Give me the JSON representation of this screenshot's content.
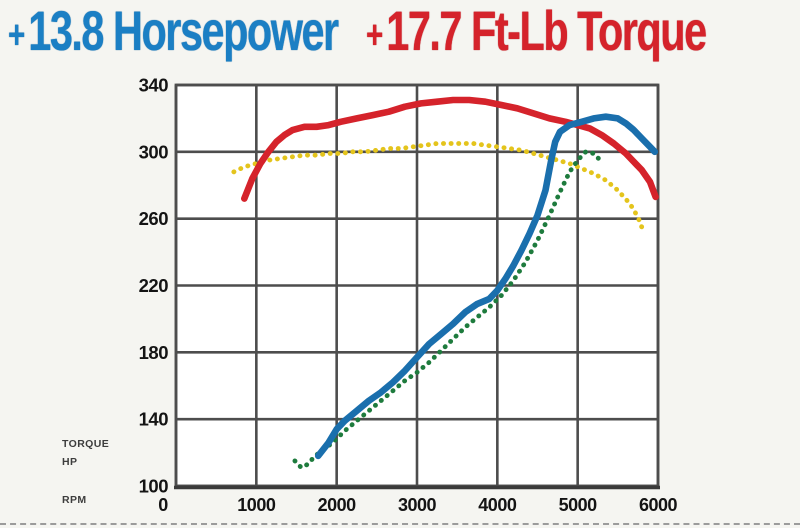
{
  "title": {
    "horsepower": {
      "plus": "+",
      "text": "13.8 Horsepower",
      "color": "#1b7fc4"
    },
    "torque": {
      "plus": "+",
      "text": "17.7 Ft-Lb Torque",
      "color": "#d5232b"
    }
  },
  "axis_side_labels": {
    "torque": "TORQUE",
    "hp": "HP",
    "rpm": "RPM"
  },
  "colors": {
    "page_bg": "#f5f5f1",
    "plot_bg": "#ffffff",
    "grid": "#4d4d4d",
    "axis_bottom": "#3a3a3a",
    "tick_text": "#141414"
  },
  "chart_data": {
    "type": "line",
    "title": "+ 13.8 Horsepower + 17.7 Ft-Lb Torque",
    "xlabel": "RPM",
    "ylabel": "TORQUE / HP",
    "x_ticks": [
      0,
      1000,
      2000,
      3000,
      4000,
      5000,
      6000
    ],
    "y_ticks": [
      100,
      140,
      180,
      220,
      260,
      300,
      340
    ],
    "xlim": [
      0,
      6000
    ],
    "ylim": [
      100,
      340
    ],
    "grid": true,
    "legend_position": "none",
    "series": [
      {
        "name": "torque-before",
        "label": "Torque before (dotted yellow)",
        "style": "dotted",
        "color": "#e4c41c",
        "points": [
          [
            720,
            288
          ],
          [
            850,
            291
          ],
          [
            1000,
            293
          ],
          [
            1150,
            295
          ],
          [
            1300,
            296
          ],
          [
            1450,
            297
          ],
          [
            1600,
            298
          ],
          [
            1750,
            298
          ],
          [
            1900,
            299
          ],
          [
            2050,
            299
          ],
          [
            2200,
            300
          ],
          [
            2350,
            300
          ],
          [
            2500,
            301
          ],
          [
            2650,
            302
          ],
          [
            2800,
            302
          ],
          [
            2950,
            303
          ],
          [
            3100,
            304
          ],
          [
            3250,
            305
          ],
          [
            3400,
            305
          ],
          [
            3550,
            305
          ],
          [
            3700,
            305
          ],
          [
            3850,
            304
          ],
          [
            4000,
            303
          ],
          [
            4150,
            302
          ],
          [
            4300,
            301
          ],
          [
            4450,
            299
          ],
          [
            4600,
            297
          ],
          [
            4750,
            295
          ],
          [
            4900,
            293
          ],
          [
            5050,
            290
          ],
          [
            5200,
            287
          ],
          [
            5350,
            283
          ],
          [
            5500,
            277
          ],
          [
            5650,
            269
          ],
          [
            5750,
            261
          ],
          [
            5830,
            251
          ]
        ]
      },
      {
        "name": "hp-before",
        "label": "Horsepower before (dotted green)",
        "style": "dotted",
        "color": "#1e7b3d",
        "points": [
          [
            1480,
            115
          ],
          [
            1560,
            111
          ],
          [
            1640,
            113
          ],
          [
            1730,
            118
          ],
          [
            1820,
            121
          ],
          [
            1950,
            126
          ],
          [
            2100,
            133
          ],
          [
            2250,
            139
          ],
          [
            2400,
            145
          ],
          [
            2550,
            151
          ],
          [
            2700,
            157
          ],
          [
            2850,
            163
          ],
          [
            3000,
            168
          ],
          [
            3150,
            174
          ],
          [
            3300,
            181
          ],
          [
            3450,
            188
          ],
          [
            3600,
            195
          ],
          [
            3750,
            201
          ],
          [
            3900,
            207
          ],
          [
            4050,
            214
          ],
          [
            4200,
            223
          ],
          [
            4350,
            234
          ],
          [
            4500,
            247
          ],
          [
            4650,
            262
          ],
          [
            4780,
            276
          ],
          [
            4900,
            288
          ],
          [
            5000,
            295
          ],
          [
            5100,
            300
          ],
          [
            5200,
            299
          ],
          [
            5300,
            294
          ]
        ]
      },
      {
        "name": "torque-after",
        "label": "Torque after (solid red)",
        "style": "solid",
        "color": "#d5232b",
        "points": [
          [
            850,
            272
          ],
          [
            950,
            284
          ],
          [
            1050,
            293
          ],
          [
            1150,
            300
          ],
          [
            1250,
            306
          ],
          [
            1350,
            310
          ],
          [
            1450,
            313
          ],
          [
            1600,
            315
          ],
          [
            1750,
            315
          ],
          [
            1900,
            316
          ],
          [
            2050,
            318
          ],
          [
            2250,
            320
          ],
          [
            2450,
            322
          ],
          [
            2650,
            324
          ],
          [
            2850,
            327
          ],
          [
            3050,
            329
          ],
          [
            3250,
            330
          ],
          [
            3450,
            331
          ],
          [
            3650,
            331
          ],
          [
            3850,
            330
          ],
          [
            4050,
            328
          ],
          [
            4250,
            326
          ],
          [
            4450,
            323
          ],
          [
            4650,
            320
          ],
          [
            4850,
            318
          ],
          [
            5000,
            316
          ],
          [
            5150,
            314
          ],
          [
            5300,
            310
          ],
          [
            5450,
            305
          ],
          [
            5600,
            299
          ],
          [
            5700,
            294
          ],
          [
            5800,
            289
          ],
          [
            5900,
            282
          ],
          [
            5970,
            273
          ]
        ]
      },
      {
        "name": "hp-after",
        "label": "Horsepower after (solid blue)",
        "style": "solid",
        "color": "#1a6fad",
        "points": [
          [
            1770,
            118
          ],
          [
            1900,
            126
          ],
          [
            2000,
            134
          ],
          [
            2100,
            139
          ],
          [
            2250,
            145
          ],
          [
            2400,
            151
          ],
          [
            2550,
            156
          ],
          [
            2700,
            162
          ],
          [
            2850,
            169
          ],
          [
            3000,
            177
          ],
          [
            3150,
            185
          ],
          [
            3300,
            191
          ],
          [
            3450,
            197
          ],
          [
            3600,
            204
          ],
          [
            3750,
            209
          ],
          [
            3900,
            212
          ],
          [
            4000,
            217
          ],
          [
            4100,
            224
          ],
          [
            4200,
            232
          ],
          [
            4300,
            241
          ],
          [
            4400,
            251
          ],
          [
            4500,
            262
          ],
          [
            4600,
            277
          ],
          [
            4670,
            295
          ],
          [
            4720,
            306
          ],
          [
            4780,
            312
          ],
          [
            4900,
            316
          ],
          [
            5050,
            318
          ],
          [
            5200,
            320
          ],
          [
            5350,
            321
          ],
          [
            5500,
            320
          ],
          [
            5600,
            317
          ],
          [
            5700,
            313
          ],
          [
            5800,
            308
          ],
          [
            5900,
            303
          ],
          [
            5960,
            300
          ]
        ]
      }
    ]
  }
}
